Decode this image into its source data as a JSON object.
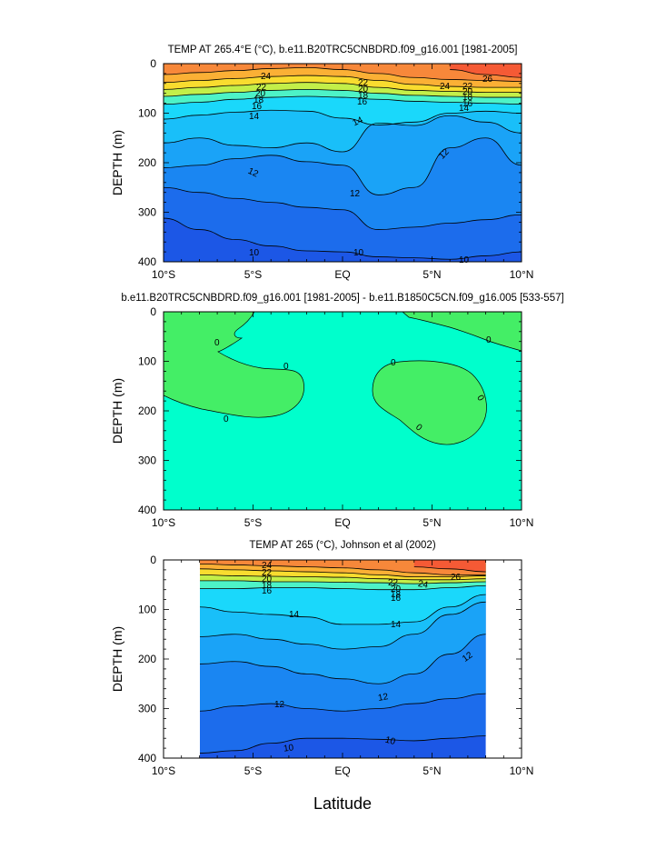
{
  "figure": {
    "xlabel": "Latitude",
    "x_ticks": [
      "10°S",
      "5°S",
      "EQ",
      "5°N",
      "10°N"
    ],
    "y_ticks": [
      "0",
      "100",
      "200",
      "300",
      "400"
    ],
    "ylabel": "DEPTH (m)"
  },
  "palette": {
    "levels": [
      8,
      10,
      11,
      12,
      13,
      14,
      15,
      16,
      17,
      18,
      19,
      20,
      21,
      22,
      23,
      24,
      25,
      26,
      27
    ],
    "colors": [
      "#1c57e6",
      "#1c6cec",
      "#1a86f2",
      "#1aa3f7",
      "#19bff9",
      "#1ad8fb",
      "#1ef0ff",
      "#4df3c7",
      "#8ef08a",
      "#c3ef49",
      "#eef132",
      "#f9dc2f",
      "#fbc62e",
      "#fbb035",
      "#f99b3a",
      "#f7883a",
      "#f7723a",
      "#f55a35",
      "#f03c2b"
    ],
    "diff_colors": {
      "positive": "#00ffcc",
      "negative": "#44ee66"
    }
  },
  "chart_data": [
    {
      "type": "contour",
      "title": "TEMP AT 265.4°E (°C), b.e11.B20TRC5CNBDRD.f09_g16.001 [1981-2005]",
      "x": [
        -10,
        -8,
        -6,
        -4,
        -2,
        0,
        2,
        4,
        6,
        8,
        10
      ],
      "xlim": [
        -10,
        10
      ],
      "ylim": [
        0,
        400
      ],
      "contour_labels": [
        "24",
        "22",
        "20",
        "18",
        "16",
        "14",
        "12",
        "12",
        "12",
        "10",
        "10",
        "10",
        "22",
        "20",
        "18",
        "16",
        "14",
        "24",
        "26",
        "22",
        "20",
        "18",
        "16",
        "14"
      ],
      "isotherms": [
        {
          "level": 26,
          "depths": [
            null,
            null,
            null,
            null,
            null,
            null,
            null,
            null,
            12,
            22,
            28
          ]
        },
        {
          "level": 24,
          "depths": [
            22,
            18,
            14,
            10,
            8,
            12,
            20,
            28,
            32,
            34,
            36
          ]
        },
        {
          "level": 22,
          "depths": [
            38,
            34,
            30,
            26,
            24,
            26,
            34,
            42,
            46,
            48,
            48
          ]
        },
        {
          "level": 20,
          "depths": [
            52,
            48,
            44,
            40,
            38,
            40,
            48,
            54,
            56,
            58,
            58
          ]
        },
        {
          "level": 18,
          "depths": [
            66,
            62,
            58,
            54,
            52,
            54,
            60,
            64,
            66,
            68,
            68
          ]
        },
        {
          "level": 16,
          "depths": [
            82,
            78,
            72,
            68,
            66,
            68,
            72,
            76,
            78,
            80,
            82
          ]
        },
        {
          "level": 14,
          "depths": [
            112,
            104,
            98,
            94,
            96,
            110,
            124,
            118,
            100,
            96,
            100
          ]
        },
        {
          "level": 13,
          "depths": [
            160,
            150,
            165,
            170,
            160,
            178,
            120,
            125,
            105,
            118,
            140
          ]
        },
        {
          "level": 12,
          "depths": [
            210,
            205,
            192,
            185,
            198,
            205,
            265,
            250,
            170,
            150,
            205
          ]
        },
        {
          "level": 11,
          "depths": [
            250,
            260,
            272,
            280,
            290,
            295,
            335,
            330,
            322,
            315,
            305
          ]
        },
        {
          "level": 10,
          "depths": [
            312,
            335,
            355,
            368,
            378,
            380,
            390,
            392,
            395,
            388,
            380
          ]
        }
      ]
    },
    {
      "type": "contour",
      "title": "b.e11.B20TRC5CNBDRD.f09_g16.001 [1981-2005] - b.e11.B1850C5CN.f09_g16.005 [533-557]",
      "xlim": [
        -10,
        10
      ],
      "ylim": [
        0,
        400
      ],
      "contour_labels": [
        "0",
        "0",
        "0",
        "0",
        "0",
        "0",
        "0"
      ],
      "negative_regions": 3
    },
    {
      "type": "contour",
      "title": "TEMP AT 265 (°C), Johnson et al (2002)",
      "x": [
        -8,
        -6,
        -4,
        -2,
        0,
        2,
        4,
        6,
        8
      ],
      "xlim": [
        -10,
        10
      ],
      "data_xlim": [
        -8,
        8
      ],
      "ylim": [
        0,
        400
      ],
      "contour_labels": [
        "24",
        "22",
        "20",
        "18",
        "16",
        "14",
        "12",
        "12",
        "10",
        "10",
        "14",
        "12",
        "22",
        "24",
        "20",
        "18",
        "16",
        "26"
      ],
      "isotherms": [
        {
          "level": 26,
          "depths": [
            null,
            null,
            null,
            null,
            null,
            null,
            14,
            18,
            24
          ]
        },
        {
          "level": 24,
          "depths": [
            8,
            10,
            12,
            14,
            16,
            20,
            26,
            30,
            30
          ]
        },
        {
          "level": 22,
          "depths": [
            18,
            20,
            22,
            24,
            26,
            30,
            34,
            34,
            32
          ]
        },
        {
          "level": 20,
          "depths": [
            30,
            32,
            33,
            34,
            35,
            38,
            40,
            40,
            38
          ]
        },
        {
          "level": 18,
          "depths": [
            42,
            42,
            44,
            44,
            45,
            46,
            48,
            46,
            44
          ]
        },
        {
          "level": 16,
          "depths": [
            58,
            58,
            56,
            56,
            58,
            60,
            60,
            56,
            52
          ]
        },
        {
          "level": 14,
          "depths": [
            95,
            105,
            110,
            115,
            130,
            130,
            125,
            95,
            70
          ]
        },
        {
          "level": 13,
          "depths": [
            155,
            150,
            160,
            170,
            180,
            175,
            150,
            110,
            85
          ]
        },
        {
          "level": 12,
          "depths": [
            210,
            205,
            215,
            230,
            240,
            250,
            230,
            190,
            150
          ]
        },
        {
          "level": 11,
          "depths": [
            305,
            295,
            290,
            300,
            305,
            300,
            290,
            280,
            270
          ]
        },
        {
          "level": 10,
          "depths": [
            390,
            385,
            370,
            360,
            360,
            362,
            365,
            360,
            355
          ]
        }
      ]
    }
  ]
}
